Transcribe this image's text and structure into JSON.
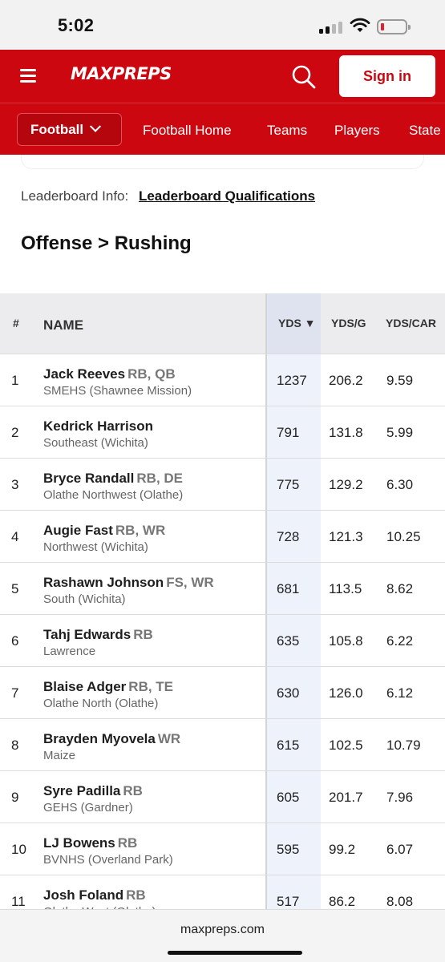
{
  "status_bar": {
    "time": "5:02"
  },
  "header": {
    "logo_text": "MAXPREPS",
    "signin_label": "Sign in",
    "brand_color": "#cc0710"
  },
  "subnav": {
    "selected_sport": "Football",
    "links": [
      "Football Home",
      "Teams",
      "Players",
      "State"
    ]
  },
  "leaderboard_info": {
    "label": "Leaderboard Info:",
    "link_text": "Leaderboard Qualifications"
  },
  "page_title": "Offense > Rushing",
  "table": {
    "headers": {
      "rank": "#",
      "name": "NAME",
      "yds": "YDS ▼",
      "ydsg": "YDS/G",
      "ydscar": "YDS/CAR"
    },
    "rows": [
      {
        "rank": "1",
        "name": "Jack Reeves",
        "pos": "RB, QB",
        "school": "SMEHS (Shawnee Mission)",
        "yds": "1237",
        "ydsg": "206.2",
        "ydscar": "9.59"
      },
      {
        "rank": "2",
        "name": "Kedrick Harrison",
        "pos": "",
        "school": "Southeast (Wichita)",
        "yds": "791",
        "ydsg": "131.8",
        "ydscar": "5.99"
      },
      {
        "rank": "3",
        "name": "Bryce Randall",
        "pos": "RB, DE",
        "school": "Olathe Northwest (Olathe)",
        "yds": "775",
        "ydsg": "129.2",
        "ydscar": "6.30"
      },
      {
        "rank": "4",
        "name": "Augie Fast",
        "pos": "RB, WR",
        "school": "Northwest (Wichita)",
        "yds": "728",
        "ydsg": "121.3",
        "ydscar": "10.25"
      },
      {
        "rank": "5",
        "name": "Rashawn Johnson",
        "pos": "FS, WR",
        "school": "South (Wichita)",
        "yds": "681",
        "ydsg": "113.5",
        "ydscar": "8.62"
      },
      {
        "rank": "6",
        "name": "Tahj Edwards",
        "pos": "RB",
        "school": "Lawrence",
        "yds": "635",
        "ydsg": "105.8",
        "ydscar": "6.22"
      },
      {
        "rank": "7",
        "name": "Blaise Adger",
        "pos": "RB, TE",
        "school": "Olathe North (Olathe)",
        "yds": "630",
        "ydsg": "126.0",
        "ydscar": "6.12"
      },
      {
        "rank": "8",
        "name": "Brayden Myovela",
        "pos": "WR",
        "school": "Maize",
        "yds": "615",
        "ydsg": "102.5",
        "ydscar": "10.79"
      },
      {
        "rank": "9",
        "name": "Syre Padilla",
        "pos": "RB",
        "school": "GEHS (Gardner)",
        "yds": "605",
        "ydsg": "201.7",
        "ydscar": "7.96"
      },
      {
        "rank": "10",
        "name": "LJ Bowens",
        "pos": "RB",
        "school": "BVNHS (Overland Park)",
        "yds": "595",
        "ydsg": "99.2",
        "ydscar": "6.07"
      },
      {
        "rank": "11",
        "name": "Josh Foland",
        "pos": "RB",
        "school": "Olathe West (Olathe)",
        "yds": "517",
        "ydsg": "86.2",
        "ydscar": "8.08"
      }
    ]
  },
  "url_bar": {
    "url": "maxpreps.com"
  }
}
